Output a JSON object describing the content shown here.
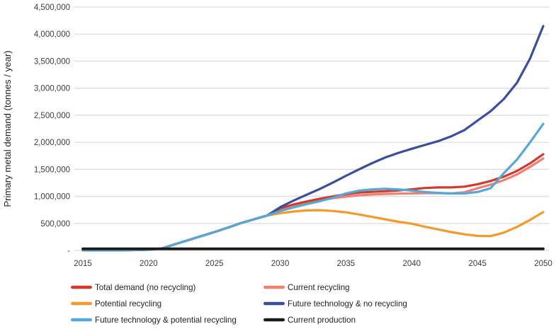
{
  "chart_data": {
    "type": "line",
    "title": "",
    "xlabel": "",
    "ylabel": "Primary metal demand (tonnes / year)",
    "xlim": [
      2015,
      2050
    ],
    "ylim": [
      0,
      4500000
    ],
    "grid": "horizontal",
    "legend_position": "bottom",
    "x_ticks": [
      2015,
      2020,
      2025,
      2030,
      2035,
      2040,
      2045,
      2050
    ],
    "y_ticks": [
      0,
      500000,
      1000000,
      1500000,
      2000000,
      2500000,
      3000000,
      3500000,
      4000000,
      4500000
    ],
    "y_tick_labels": [
      "-",
      "500,000",
      "1,000,000",
      "1,500,000",
      "2,000,000",
      "2,500,000",
      "3,000,000",
      "3,500,000",
      "4,000,000",
      "4,500,000"
    ],
    "x": [
      2015,
      2016,
      2017,
      2018,
      2019,
      2020,
      2021,
      2022,
      2023,
      2024,
      2025,
      2026,
      2027,
      2028,
      2029,
      2030,
      2031,
      2032,
      2033,
      2034,
      2035,
      2036,
      2037,
      2038,
      2039,
      2040,
      2041,
      2042,
      2043,
      2044,
      2045,
      2046,
      2047,
      2048,
      2049,
      2050
    ],
    "series": [
      {
        "name": "Total demand (no recycling)",
        "color": "#d23b2b",
        "values": [
          5000,
          5000,
          5000,
          5000,
          8000,
          15000,
          35000,
          115000,
          190000,
          265000,
          340000,
          420000,
          505000,
          575000,
          645000,
          780000,
          850000,
          905000,
          955000,
          1000000,
          1040000,
          1070000,
          1085000,
          1095000,
          1110000,
          1130000,
          1155000,
          1165000,
          1165000,
          1180000,
          1225000,
          1285000,
          1365000,
          1470000,
          1610000,
          1780000
        ]
      },
      {
        "name": "Current recycling",
        "color": "#ef8173",
        "values": [
          5000,
          5000,
          5000,
          5000,
          8000,
          15000,
          35000,
          115000,
          190000,
          265000,
          340000,
          420000,
          505000,
          575000,
          645000,
          765000,
          830000,
          880000,
          925000,
          965000,
          995000,
          1020000,
          1035000,
          1045000,
          1050000,
          1055000,
          1060000,
          1060000,
          1055000,
          1075000,
          1150000,
          1215000,
          1300000,
          1405000,
          1545000,
          1700000
        ]
      },
      {
        "name": "Potential recycling",
        "color": "#f39a2b",
        "values": [
          5000,
          5000,
          5000,
          5000,
          8000,
          15000,
          35000,
          115000,
          190000,
          265000,
          340000,
          420000,
          505000,
          575000,
          645000,
          690000,
          720000,
          740000,
          745000,
          730000,
          705000,
          665000,
          620000,
          575000,
          530000,
          495000,
          440000,
          390000,
          340000,
          300000,
          270000,
          265000,
          330000,
          435000,
          565000,
          710000
        ]
      },
      {
        "name": "Future technology & no recycling",
        "color": "#3a4d9f",
        "values": [
          5000,
          5000,
          5000,
          5000,
          8000,
          15000,
          35000,
          115000,
          190000,
          265000,
          340000,
          420000,
          505000,
          575000,
          645000,
          800000,
          920000,
          1030000,
          1135000,
          1255000,
          1380000,
          1500000,
          1615000,
          1720000,
          1805000,
          1880000,
          1950000,
          2020000,
          2110000,
          2225000,
          2400000,
          2575000,
          2800000,
          3100000,
          3550000,
          4150000
        ]
      },
      {
        "name": "Future technology & potential recycling",
        "color": "#56a8d6",
        "values": [
          5000,
          5000,
          5000,
          5000,
          8000,
          15000,
          35000,
          115000,
          190000,
          265000,
          340000,
          420000,
          505000,
          575000,
          645000,
          730000,
          795000,
          855000,
          910000,
          975000,
          1055000,
          1105000,
          1130000,
          1140000,
          1130000,
          1105000,
          1080000,
          1065000,
          1055000,
          1055000,
          1080000,
          1150000,
          1430000,
          1680000,
          2000000,
          2340000
        ]
      },
      {
        "name": "Current production",
        "color": "#1a1a1a",
        "values": [
          30000,
          30000,
          30000,
          30000,
          30000,
          30000,
          30000,
          30000,
          30000,
          30000,
          30000,
          30000,
          30000,
          30000,
          30000,
          30000,
          30000,
          30000,
          30000,
          30000,
          30000,
          30000,
          30000,
          30000,
          30000,
          30000,
          30000,
          30000,
          30000,
          30000,
          30000,
          30000,
          30000,
          30000,
          30000,
          30000
        ]
      }
    ],
    "legend_rows": [
      [
        0,
        1
      ],
      [
        2,
        3
      ],
      [
        4,
        5
      ]
    ],
    "draw_order": [
      2,
      1,
      0,
      3,
      4,
      5
    ],
    "gridline_color": "#dcdcdc"
  }
}
